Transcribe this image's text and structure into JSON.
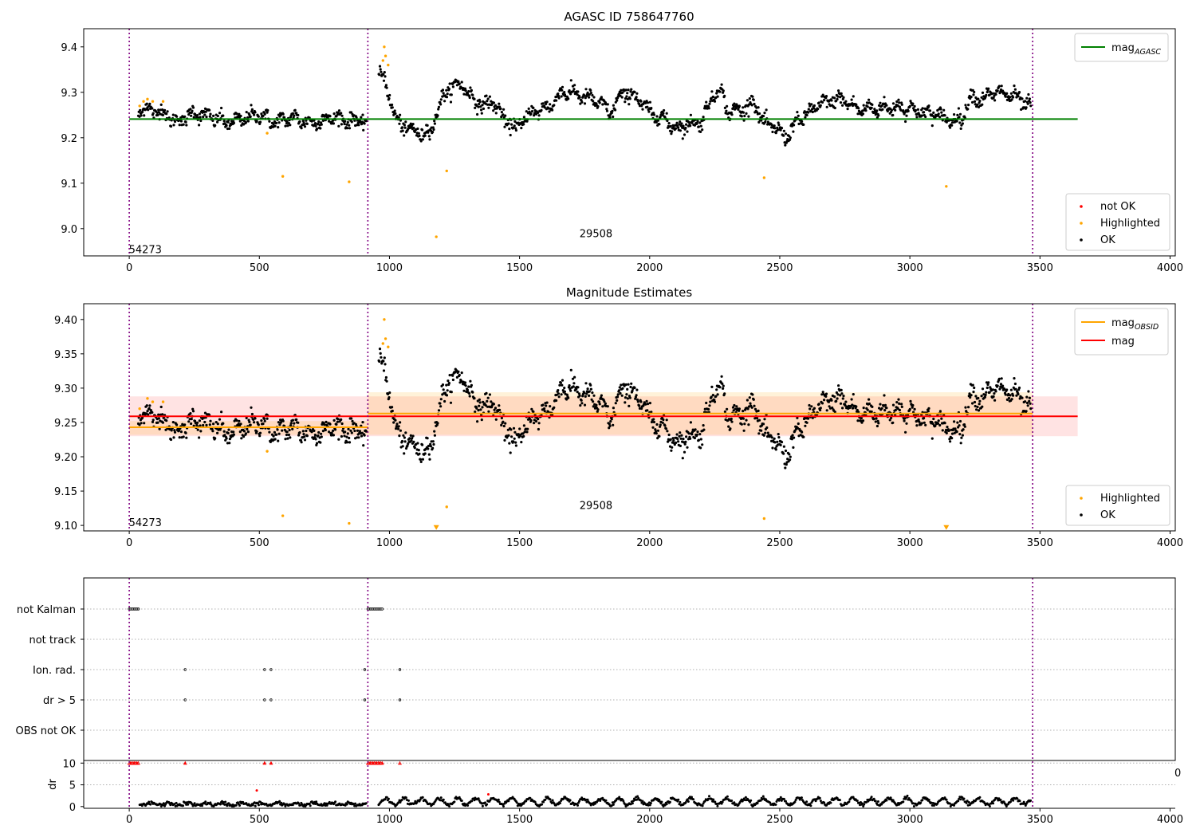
{
  "chart_data": [
    {
      "type": "scatter",
      "title": "AGASC ID 758647760",
      "xlim": [
        -175,
        4020
      ],
      "ylim": [
        8.94,
        9.44
      ],
      "xticks": [
        0,
        500,
        1000,
        1500,
        2000,
        2500,
        3000,
        3500,
        4000
      ],
      "yticks": [
        9.0,
        9.1,
        9.2,
        9.3,
        9.4
      ],
      "ytick_format": 1,
      "obs_boundaries": [
        0,
        917,
        3472
      ],
      "obsid_labels": [
        {
          "text": "54273",
          "x": 458,
          "y": 8.955
        },
        {
          "text": "29508",
          "x": 2190,
          "y": 8.99
        }
      ],
      "lines": [
        {
          "name": "mag_AGASC",
          "color": "#008000",
          "x": [
            0,
            3645
          ],
          "y": [
            9.241,
            9.241
          ]
        }
      ],
      "legend_top": [
        {
          "label": "mag",
          "sub": "AGASC",
          "color": "#008000",
          "kind": "line"
        }
      ],
      "legend_bottom": [
        {
          "label": "not OK",
          "color": "#ff0000",
          "kind": "dot"
        },
        {
          "label": "Highlighted",
          "color": "#ffa500",
          "kind": "dot"
        },
        {
          "label": "OK",
          "color": "#000000",
          "kind": "dot"
        }
      ],
      "highlighted": [
        [
          40,
          9.27
        ],
        [
          55,
          9.28
        ],
        [
          70,
          9.285
        ],
        [
          90,
          9.28
        ],
        [
          130,
          9.28
        ],
        [
          530,
          9.21
        ],
        [
          590,
          9.115
        ],
        [
          845,
          9.103
        ],
        [
          975,
          9.37
        ],
        [
          980,
          9.4
        ],
        [
          985,
          9.38
        ],
        [
          995,
          9.36
        ],
        [
          1180,
          8.982
        ],
        [
          1220,
          9.127
        ],
        [
          2440,
          9.112
        ],
        [
          3140,
          9.093
        ]
      ]
    },
    {
      "type": "scatter",
      "title": "Magnitude Estimates",
      "xlim": [
        -175,
        4020
      ],
      "ylim": [
        9.092,
        9.423
      ],
      "xticks": [
        0,
        500,
        1000,
        1500,
        2000,
        2500,
        3000,
        3500,
        4000
      ],
      "yticks": [
        9.1,
        9.15,
        9.2,
        9.25,
        9.3,
        9.35,
        9.4
      ],
      "ytick_format": 2,
      "obs_boundaries": [
        0,
        917,
        3472
      ],
      "obsid_labels": [
        {
          "text": "54273",
          "x": 458,
          "y": 9.105
        },
        {
          "text": "29508",
          "x": 2190,
          "y": 9.13
        }
      ],
      "bands": [
        {
          "color": "#ff0000",
          "opacity": 0.11,
          "x": [
            0,
            3645
          ],
          "y": [
            9.23,
            9.288
          ]
        },
        {
          "color": "#ffa500",
          "opacity": 0.15,
          "x": [
            0,
            917
          ],
          "y": [
            9.232,
            9.252
          ]
        },
        {
          "color": "#ffa500",
          "opacity": 0.15,
          "x": [
            917,
            3472
          ],
          "y": [
            9.232,
            9.294
          ]
        }
      ],
      "lines": [
        {
          "name": "mag_OBSID_1",
          "color": "#ffa500",
          "x": [
            0,
            917
          ],
          "y": [
            9.243,
            9.243
          ]
        },
        {
          "name": "mag_OBSID_2",
          "color": "#ffa500",
          "x": [
            917,
            3472
          ],
          "y": [
            9.263,
            9.263
          ]
        },
        {
          "name": "mag",
          "color": "#ff0000",
          "x": [
            0,
            3645
          ],
          "y": [
            9.259,
            9.259
          ]
        }
      ],
      "legend_top": [
        {
          "label": "mag",
          "sub": "OBSID",
          "color": "#ffa500",
          "kind": "line"
        },
        {
          "label": "mag",
          "sub": "",
          "color": "#ff0000",
          "kind": "line"
        }
      ],
      "legend_bottom": [
        {
          "label": "Highlighted",
          "color": "#ffa500",
          "kind": "dot"
        },
        {
          "label": "OK",
          "color": "#000000",
          "kind": "dot"
        }
      ],
      "highlighted": [
        [
          40,
          9.27
        ],
        [
          70,
          9.285
        ],
        [
          90,
          9.28
        ],
        [
          130,
          9.28
        ],
        [
          530,
          9.208
        ],
        [
          590,
          9.114
        ],
        [
          845,
          9.103
        ],
        [
          975,
          9.365
        ],
        [
          980,
          9.4
        ],
        [
          985,
          9.372
        ],
        [
          995,
          9.36
        ],
        [
          1220,
          9.127
        ],
        [
          2440,
          9.11
        ]
      ],
      "off_scale": [
        [
          1180,
          9.097
        ],
        [
          3140,
          9.097
        ]
      ]
    },
    {
      "type": "scatter",
      "title": "",
      "xlim": [
        -175,
        4020
      ],
      "flag_rows": [
        "not Kalman",
        "not track",
        "Ion. rad.",
        "dr > 5",
        "OBS not OK"
      ],
      "flag_points": {
        "not Kalman": [
          0,
          5,
          10,
          15,
          20,
          25,
          30,
          35,
          917,
          922,
          927,
          932,
          937,
          942,
          947,
          952,
          957,
          962,
          967,
          972
        ],
        "not track": [],
        "Ion. rad.": [
          215,
          520,
          545,
          905,
          1040
        ],
        "dr > 5": [
          215,
          520,
          545,
          905,
          1040
        ],
        "OBS not OK": []
      },
      "ylabel": "dr",
      "dr_ylim": [
        -0.4,
        10.6
      ],
      "dr_yticks": [
        0,
        5,
        10
      ],
      "dr_clipped_x": [
        0,
        5,
        10,
        15,
        20,
        25,
        30,
        35,
        215,
        520,
        545,
        917,
        922,
        927,
        932,
        937,
        942,
        947,
        952,
        957,
        962,
        967,
        972,
        1040
      ],
      "dr_outliers": [
        [
          490,
          3.7
        ],
        [
          1380,
          2.8
        ]
      ],
      "corner_tick_label": "0",
      "xticks": [
        0,
        500,
        1000,
        1500,
        2000,
        2500,
        3000,
        3500,
        4000
      ],
      "obs_boundaries": [
        0,
        917,
        3472
      ]
    }
  ]
}
